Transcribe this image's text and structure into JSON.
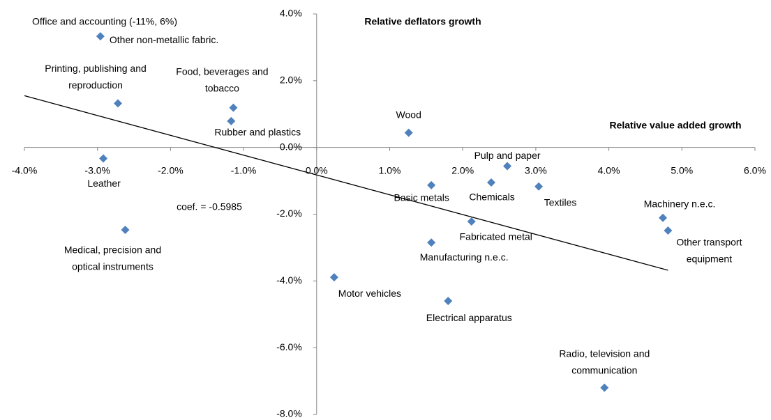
{
  "chart_data": {
    "type": "scatter",
    "y_title": "Relative deflators growth",
    "x_title": "Relative value added growth",
    "annotations": [
      "Office and accounting (-11%, 6%)",
      "coef. = -0.5985"
    ],
    "xlim": [
      -4,
      6
    ],
    "ylim": [
      -8,
      4
    ],
    "xticks": [
      {
        "value": -4,
        "label": "-4.0%"
      },
      {
        "value": -3,
        "label": "-3.0%"
      },
      {
        "value": -2,
        "label": "-2.0%"
      },
      {
        "value": -1,
        "label": "-1.0%"
      },
      {
        "value": 0,
        "label": "0.0%"
      },
      {
        "value": 1,
        "label": "1.0%"
      },
      {
        "value": 2,
        "label": "2.0%"
      },
      {
        "value": 3,
        "label": "3.0%"
      },
      {
        "value": 4,
        "label": "4.0%"
      },
      {
        "value": 5,
        "label": "5.0%"
      },
      {
        "value": 6,
        "label": "6.0%"
      }
    ],
    "yticks": [
      {
        "value": -8,
        "label": "-8.0%"
      },
      {
        "value": -6,
        "label": "-6.0%"
      },
      {
        "value": -4,
        "label": "-4.0%"
      },
      {
        "value": -2,
        "label": "-2.0%"
      },
      {
        "value": 0,
        "label": "0.0%"
      },
      {
        "value": 2,
        "label": "2.0%"
      },
      {
        "value": 4,
        "label": "4.0%"
      }
    ],
    "series": [
      {
        "color": "#4f81bd",
        "x": [
          -2.96,
          -2.72,
          -1.14,
          -1.17,
          1.26,
          -2.92,
          2.61,
          1.57,
          2.39,
          3.04,
          4.74,
          4.81,
          2.12,
          1.57,
          -2.62,
          0.24,
          1.8,
          3.94
        ],
        "values": [
          3.33,
          1.32,
          1.19,
          0.79,
          0.44,
          -0.33,
          -0.56,
          -1.13,
          -1.05,
          -1.17,
          -2.11,
          -2.49,
          -2.22,
          -2.85,
          -2.47,
          -3.89,
          -4.6,
          -7.2
        ],
        "point_labels": [
          [
            "Other non-metallic fabric."
          ],
          [
            "Printing, publishing and",
            "reproduction"
          ],
          [
            "Food, beverages and",
            "tobacco"
          ],
          [
            "Rubber and plastics"
          ],
          [
            "Wood"
          ],
          [
            "Leather"
          ],
          [
            "Pulp and paper"
          ],
          [
            "Basic metals"
          ],
          [
            "Chemicals"
          ],
          [
            "Textiles"
          ],
          [
            "Machinery  n.e.c."
          ],
          [
            "Other transport",
            "equipment"
          ],
          [
            "Fabricated metal"
          ],
          [
            "Manufacturing n.e.c."
          ],
          [
            "Medical, precision and",
            "optical instruments"
          ],
          [
            "Motor vehicles"
          ],
          [
            "Electrical apparatus"
          ],
          [
            "Radio, television and",
            "communication"
          ]
        ]
      }
    ],
    "trendline": {
      "color": "#000000",
      "x": [
        -4,
        4.81
      ],
      "values": [
        1.55,
        -3.68
      ]
    }
  }
}
